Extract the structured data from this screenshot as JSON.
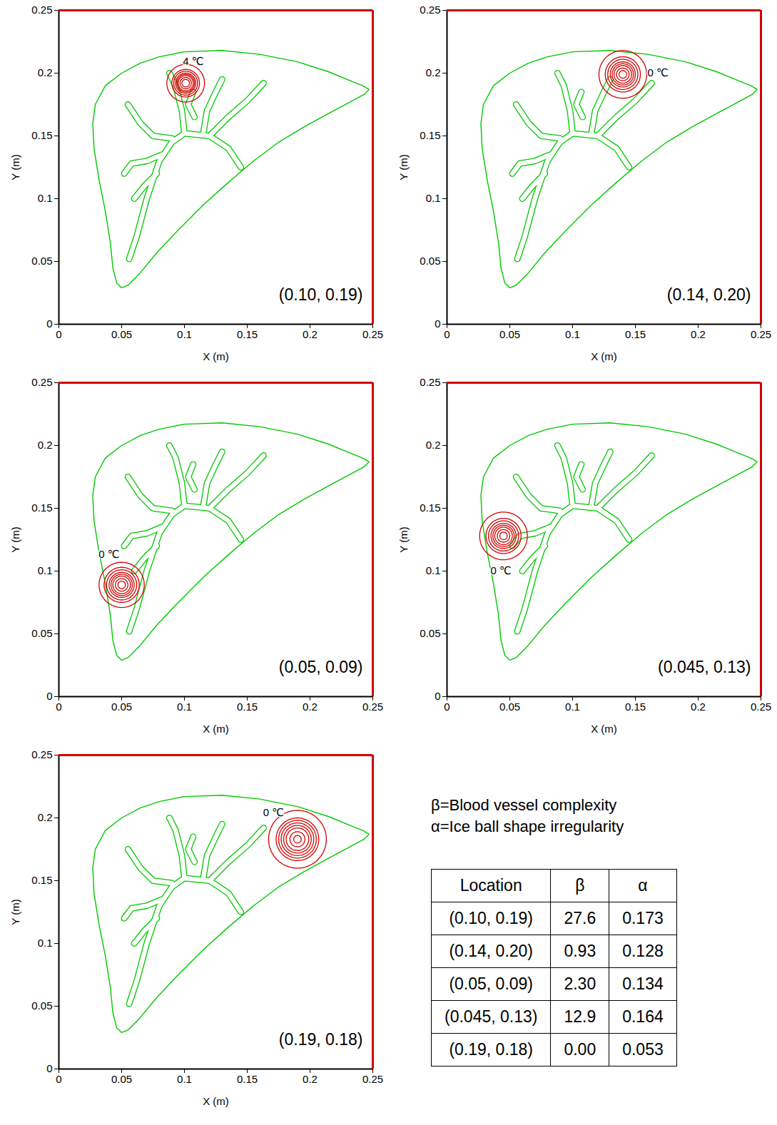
{
  "chart_data": [
    {
      "type": "line",
      "xlim": [
        0,
        0.25
      ],
      "ylim": [
        0,
        0.25
      ],
      "xticks": [
        0,
        0.05,
        0.1,
        0.15,
        0.2,
        0.25
      ],
      "yticks": [
        0,
        0.05,
        0.1,
        0.15,
        0.2,
        0.25
      ],
      "x_label": "X (m)",
      "y_label": "Y (m)",
      "location_label": "(0.10, 0.19)",
      "isotherms": {
        "color": "#d40000",
        "center": [
          0.101,
          0.192
        ],
        "radii": [
          0.003,
          0.0045,
          0.006,
          0.007,
          0.008,
          0.0095,
          0.011,
          0.015
        ]
      },
      "annotations": [
        {
          "text": "4 ℃",
          "x": 0.107,
          "y": 0.209
        }
      ]
    },
    {
      "type": "line",
      "xlim": [
        0,
        0.25
      ],
      "ylim": [
        0,
        0.25
      ],
      "xticks": [
        0,
        0.05,
        0.1,
        0.15,
        0.2,
        0.25
      ],
      "yticks": [
        0,
        0.05,
        0.1,
        0.15,
        0.2,
        0.25
      ],
      "x_label": "X (m)",
      "y_label": "Y (m)",
      "location_label": "(0.14, 0.20)",
      "isotherms": {
        "color": "#d40000",
        "center": [
          0.14,
          0.199
        ],
        "radii": [
          0.003,
          0.005,
          0.007,
          0.0085,
          0.01,
          0.012,
          0.014,
          0.019
        ]
      },
      "annotations": [
        {
          "text": "0 ℃",
          "x": 0.168,
          "y": 0.2
        }
      ]
    },
    {
      "type": "line",
      "xlim": [
        0,
        0.25
      ],
      "ylim": [
        0,
        0.25
      ],
      "xticks": [
        0,
        0.05,
        0.1,
        0.15,
        0.2,
        0.25
      ],
      "yticks": [
        0,
        0.05,
        0.1,
        0.15,
        0.2,
        0.25
      ],
      "x_label": "X (m)",
      "y_label": "Y (m)",
      "location_label": "(0.05, 0.09)",
      "isotherms": {
        "color": "#d40000",
        "center": [
          0.05,
          0.089
        ],
        "radii": [
          0.003,
          0.005,
          0.007,
          0.0085,
          0.01,
          0.012,
          0.014,
          0.018
        ]
      },
      "annotations": [
        {
          "text": "0 ℃",
          "x": 0.04,
          "y": 0.113
        }
      ]
    },
    {
      "type": "line",
      "xlim": [
        0,
        0.25
      ],
      "ylim": [
        0,
        0.25
      ],
      "xticks": [
        0,
        0.05,
        0.1,
        0.15,
        0.2,
        0.25
      ],
      "yticks": [
        0,
        0.05,
        0.1,
        0.15,
        0.2,
        0.25
      ],
      "x_label": "X (m)",
      "y_label": "Y (m)",
      "location_label": "(0.045, 0.13)",
      "isotherms": {
        "color": "#d40000",
        "center": [
          0.045,
          0.128
        ],
        "radii": [
          0.003,
          0.005,
          0.007,
          0.0085,
          0.01,
          0.012,
          0.014,
          0.019
        ]
      },
      "annotations": [
        {
          "text": "0 ℃",
          "x": 0.043,
          "y": 0.1
        }
      ]
    },
    {
      "type": "line",
      "xlim": [
        0,
        0.25
      ],
      "ylim": [
        0,
        0.25
      ],
      "xticks": [
        0,
        0.05,
        0.1,
        0.15,
        0.2,
        0.25
      ],
      "yticks": [
        0,
        0.05,
        0.1,
        0.15,
        0.2,
        0.25
      ],
      "x_label": "X (m)",
      "y_label": "Y (m)",
      "location_label": "(0.19, 0.18)",
      "isotherms": {
        "color": "#d40000",
        "center": [
          0.19,
          0.183
        ],
        "radii": [
          0.003,
          0.006,
          0.009,
          0.011,
          0.013,
          0.015,
          0.017,
          0.023
        ]
      },
      "annotations": [
        {
          "text": "0 ℃",
          "x": 0.171,
          "y": 0.204
        }
      ]
    }
  ],
  "anatomy": {
    "outline": {
      "color": "#00c800",
      "values": [
        [
          0.037,
          0.19
        ],
        [
          0.05,
          0.2
        ],
        [
          0.065,
          0.208
        ],
        [
          0.08,
          0.213
        ],
        [
          0.1,
          0.217
        ],
        [
          0.13,
          0.218
        ],
        [
          0.16,
          0.215
        ],
        [
          0.19,
          0.209
        ],
        [
          0.215,
          0.201
        ],
        [
          0.232,
          0.194
        ],
        [
          0.242,
          0.19
        ],
        [
          0.247,
          0.187
        ],
        [
          0.243,
          0.183
        ],
        [
          0.232,
          0.177
        ],
        [
          0.215,
          0.168
        ],
        [
          0.195,
          0.157
        ],
        [
          0.175,
          0.145
        ],
        [
          0.155,
          0.13
        ],
        [
          0.135,
          0.113
        ],
        [
          0.115,
          0.095
        ],
        [
          0.095,
          0.075
        ],
        [
          0.078,
          0.057
        ],
        [
          0.064,
          0.04
        ],
        [
          0.055,
          0.031
        ],
        [
          0.05,
          0.029
        ],
        [
          0.046,
          0.033
        ],
        [
          0.043,
          0.045
        ],
        [
          0.041,
          0.065
        ],
        [
          0.037,
          0.09
        ],
        [
          0.032,
          0.115
        ],
        [
          0.028,
          0.14
        ],
        [
          0.027,
          0.16
        ],
        [
          0.029,
          0.175
        ],
        [
          0.037,
          0.19
        ]
      ]
    },
    "vessels": {
      "color": "#00c800",
      "paths": [
        [
          [
            0.145,
            0.125
          ],
          [
            0.135,
            0.14
          ],
          [
            0.12,
            0.15
          ],
          [
            0.1,
            0.152
          ],
          [
            0.09,
            0.145
          ],
          [
            0.08,
            0.13
          ],
          [
            0.07,
            0.1
          ],
          [
            0.062,
            0.07
          ],
          [
            0.056,
            0.052
          ]
        ],
        [
          [
            0.12,
            0.15
          ],
          [
            0.135,
            0.165
          ],
          [
            0.15,
            0.178
          ],
          [
            0.163,
            0.192
          ]
        ],
        [
          [
            0.115,
            0.152
          ],
          [
            0.118,
            0.17
          ],
          [
            0.125,
            0.185
          ],
          [
            0.13,
            0.195
          ]
        ],
        [
          [
            0.1,
            0.152
          ],
          [
            0.098,
            0.17
          ],
          [
            0.093,
            0.19
          ],
          [
            0.088,
            0.2
          ]
        ],
        [
          [
            0.09,
            0.148
          ],
          [
            0.075,
            0.15
          ],
          [
            0.065,
            0.16
          ],
          [
            0.055,
            0.175
          ]
        ],
        [
          [
            0.082,
            0.135
          ],
          [
            0.07,
            0.13
          ],
          [
            0.058,
            0.128
          ],
          [
            0.052,
            0.12
          ]
        ],
        [
          [
            0.078,
            0.12
          ],
          [
            0.068,
            0.11
          ],
          [
            0.06,
            0.1
          ]
        ],
        [
          [
            0.108,
            0.165
          ],
          [
            0.103,
            0.175
          ],
          [
            0.107,
            0.185
          ]
        ]
      ]
    }
  },
  "legend_text": [
    "β=Blood vessel complexity",
    "α=Ice ball shape irregularity"
  ],
  "table": {
    "header": [
      "Location",
      "β",
      "α"
    ],
    "rows": [
      [
        "(0.10, 0.19)",
        "27.6",
        "0.173"
      ],
      [
        "(0.14, 0.20)",
        "0.93",
        "0.128"
      ],
      [
        "(0.05, 0.09)",
        "2.30",
        "0.134"
      ],
      [
        "(0.045, 0.13)",
        "12.9",
        "0.164"
      ],
      [
        "(0.19, 0.18)",
        "0.00",
        "0.053"
      ]
    ]
  }
}
